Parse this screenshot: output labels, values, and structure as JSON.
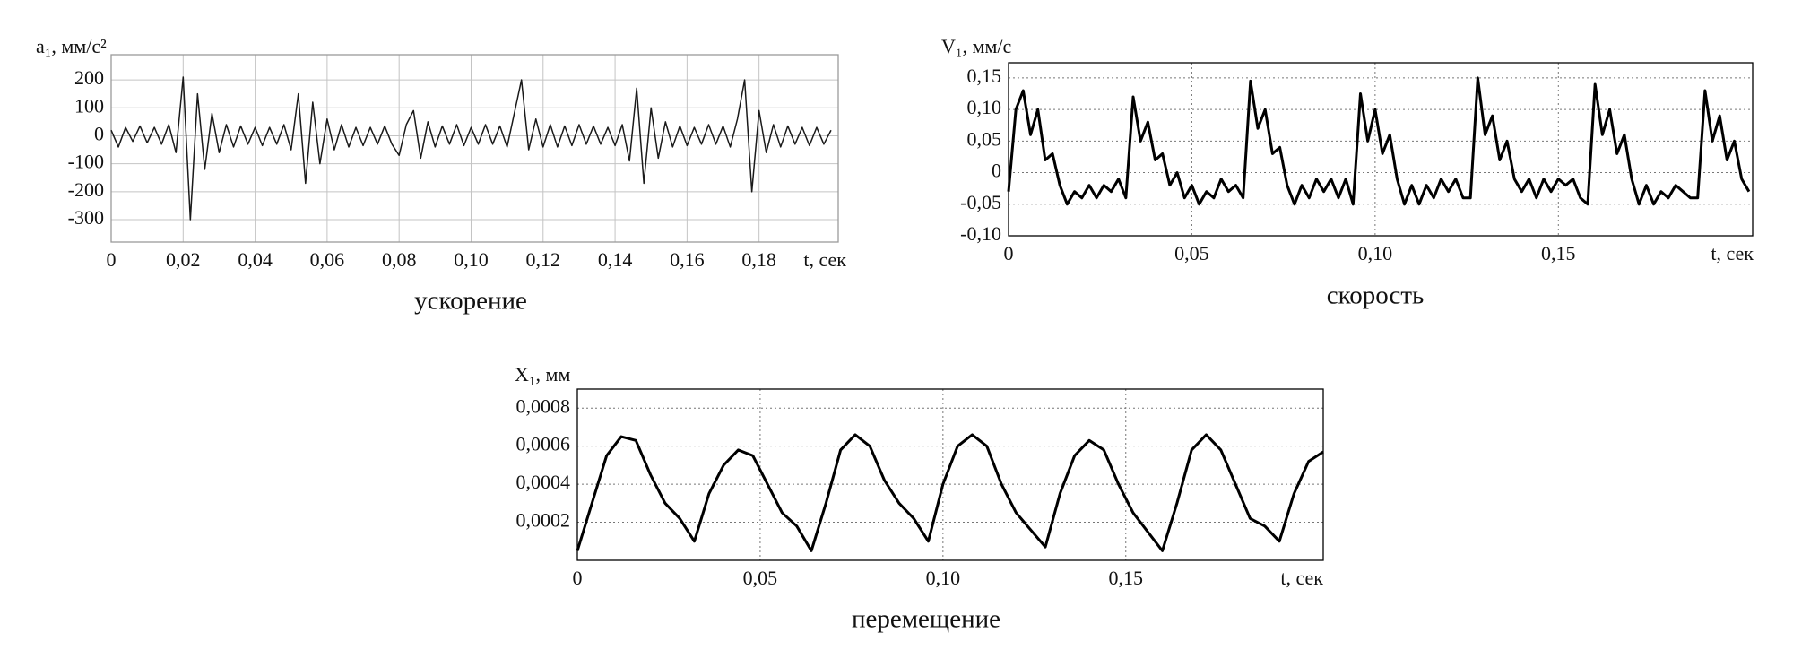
{
  "chart_data": [
    {
      "type": "line",
      "caption": "ускорение",
      "y_label": "a₁, мм/с²",
      "x_label": "t, сек",
      "color": "#1a1a1a",
      "grid": true,
      "xlim": [
        0,
        0.202
      ],
      "ylim": [
        -380,
        290
      ],
      "xticks": [
        0,
        {
          "value": 0.02,
          "label": "0,02"
        },
        {
          "value": 0.04,
          "label": "0,04"
        },
        {
          "value": 0.06,
          "label": "0,06"
        },
        {
          "value": 0.08,
          "label": "0,08"
        },
        {
          "value": 0.1,
          "label": "0,10"
        },
        {
          "value": 0.12,
          "label": "0,12"
        },
        {
          "value": 0.14,
          "label": "0,14"
        },
        {
          "value": 0.16,
          "label": "0,16"
        },
        {
          "value": 0.18,
          "label": "0,18"
        }
      ],
      "yticks": [
        200,
        100,
        0,
        -100,
        -200,
        -300
      ],
      "x": [
        0,
        0.002,
        0.004,
        0.006,
        0.008,
        0.01,
        0.012,
        0.014,
        0.016,
        0.018,
        0.02,
        0.022,
        0.024,
        0.026,
        0.028,
        0.03,
        0.032,
        0.034,
        0.036,
        0.038,
        0.04,
        0.042,
        0.044,
        0.046,
        0.048,
        0.05,
        0.052,
        0.054,
        0.056,
        0.058,
        0.06,
        0.062,
        0.064,
        0.066,
        0.068,
        0.07,
        0.072,
        0.074,
        0.076,
        0.078,
        0.08,
        0.082,
        0.084,
        0.086,
        0.088,
        0.09,
        0.092,
        0.094,
        0.096,
        0.098,
        0.1,
        0.102,
        0.104,
        0.106,
        0.108,
        0.11,
        0.112,
        0.114,
        0.116,
        0.118,
        0.12,
        0.122,
        0.124,
        0.126,
        0.128,
        0.13,
        0.132,
        0.134,
        0.136,
        0.138,
        0.14,
        0.142,
        0.144,
        0.146,
        0.148,
        0.15,
        0.152,
        0.154,
        0.156,
        0.158,
        0.16,
        0.162,
        0.164,
        0.166,
        0.168,
        0.17,
        0.172,
        0.174,
        0.176,
        0.178,
        0.18,
        0.182,
        0.184,
        0.186,
        0.188,
        0.19,
        0.192,
        0.194,
        0.196,
        0.198,
        0.2
      ],
      "values": [
        20,
        -40,
        30,
        -20,
        35,
        -25,
        30,
        -30,
        40,
        -60,
        210,
        -300,
        150,
        -120,
        80,
        -60,
        40,
        -40,
        35,
        -30,
        30,
        -35,
        30,
        -30,
        40,
        -50,
        150,
        -170,
        120,
        -100,
        60,
        -50,
        40,
        -40,
        30,
        -35,
        30,
        -30,
        35,
        -30,
        -70,
        40,
        90,
        -80,
        50,
        -40,
        35,
        -30,
        40,
        -35,
        30,
        -30,
        40,
        -30,
        35,
        -40,
        80,
        200,
        -50,
        60,
        -40,
        40,
        -40,
        35,
        -35,
        40,
        -30,
        35,
        -30,
        30,
        -35,
        40,
        -90,
        170,
        -170,
        100,
        -80,
        50,
        -40,
        35,
        -35,
        30,
        -30,
        40,
        -30,
        35,
        -40,
        60,
        200,
        -200,
        90,
        -60,
        40,
        -40,
        35,
        -30,
        30,
        -35,
        30,
        -30,
        20
      ]
    },
    {
      "type": "line",
      "caption": "скорость",
      "y_label": "V₁, мм/с",
      "x_label": "t, сек",
      "color": "#000000",
      "grid": true,
      "xlim": [
        0,
        0.203
      ],
      "ylim": [
        -0.1,
        0.174
      ],
      "xticks": [
        0,
        {
          "value": 0.05,
          "label": "0,05"
        },
        {
          "value": 0.1,
          "label": "0,10"
        },
        {
          "value": 0.15,
          "label": "0,15"
        }
      ],
      "yticks": [
        {
          "value": 0.15,
          "label": "0,15"
        },
        {
          "value": 0.1,
          "label": "0,10"
        },
        {
          "value": 0.05,
          "label": "0,05"
        },
        0,
        {
          "value": -0.05,
          "label": "-0,05"
        },
        {
          "value": -0.1,
          "label": "-0,10"
        }
      ],
      "x": [
        0,
        0.002,
        0.004,
        0.006,
        0.008,
        0.01,
        0.012,
        0.014,
        0.016,
        0.018,
        0.02,
        0.022,
        0.024,
        0.026,
        0.028,
        0.03,
        0.032,
        0.034,
        0.036,
        0.038,
        0.04,
        0.042,
        0.044,
        0.046,
        0.048,
        0.05,
        0.052,
        0.054,
        0.056,
        0.058,
        0.06,
        0.062,
        0.064,
        0.066,
        0.068,
        0.07,
        0.072,
        0.074,
        0.076,
        0.078,
        0.08,
        0.082,
        0.084,
        0.086,
        0.088,
        0.09,
        0.092,
        0.094,
        0.096,
        0.098,
        0.1,
        0.102,
        0.104,
        0.106,
        0.108,
        0.11,
        0.112,
        0.114,
        0.116,
        0.118,
        0.12,
        0.122,
        0.124,
        0.126,
        0.128,
        0.13,
        0.132,
        0.134,
        0.136,
        0.138,
        0.14,
        0.142,
        0.144,
        0.146,
        0.148,
        0.15,
        0.152,
        0.154,
        0.156,
        0.158,
        0.16,
        0.162,
        0.164,
        0.166,
        0.168,
        0.17,
        0.172,
        0.174,
        0.176,
        0.178,
        0.18,
        0.182,
        0.184,
        0.186,
        0.188,
        0.19,
        0.192,
        0.194,
        0.196,
        0.198,
        0.2,
        0.202
      ],
      "values": [
        -0.03,
        0.1,
        0.13,
        0.06,
        0.1,
        0.02,
        0.03,
        -0.02,
        -0.05,
        -0.03,
        -0.04,
        -0.02,
        -0.04,
        -0.02,
        -0.03,
        -0.01,
        -0.04,
        0.12,
        0.05,
        0.08,
        0.02,
        0.03,
        -0.02,
        0,
        -0.04,
        -0.02,
        -0.05,
        -0.03,
        -0.04,
        -0.01,
        -0.03,
        -0.02,
        -0.04,
        0.145,
        0.07,
        0.1,
        0.03,
        0.04,
        -0.02,
        -0.05,
        -0.02,
        -0.04,
        -0.01,
        -0.03,
        -0.01,
        -0.04,
        -0.01,
        -0.05,
        0.125,
        0.05,
        0.1,
        0.03,
        0.06,
        -0.01,
        -0.05,
        -0.02,
        -0.05,
        -0.02,
        -0.04,
        -0.01,
        -0.03,
        -0.01,
        -0.04,
        -0.04,
        0.15,
        0.06,
        0.09,
        0.02,
        0.05,
        -0.01,
        -0.03,
        -0.01,
        -0.04,
        -0.01,
        -0.03,
        -0.01,
        -0.02,
        -0.01,
        -0.04,
        -0.05,
        0.14,
        0.06,
        0.1,
        0.03,
        0.06,
        -0.01,
        -0.05,
        -0.02,
        -0.05,
        -0.03,
        -0.04,
        -0.02,
        -0.03,
        -0.04,
        -0.04,
        0.13,
        0.05,
        0.09,
        0.02,
        0.05,
        -0.01,
        -0.03
      ]
    },
    {
      "type": "line",
      "caption": "перемещение",
      "y_label": "X₁, мм",
      "x_label": "t, сек",
      "color": "#000000",
      "grid": true,
      "xlim": [
        0,
        0.204
      ],
      "ylim": [
        0,
        0.0009
      ],
      "xticks": [
        0,
        {
          "value": 0.05,
          "label": "0,05"
        },
        {
          "value": 0.1,
          "label": "0,10"
        },
        {
          "value": 0.15,
          "label": "0,15"
        }
      ],
      "yticks": [
        {
          "value": 0.0008,
          "label": "0,0008"
        },
        {
          "value": 0.0006,
          "label": "0,0006"
        },
        {
          "value": 0.0004,
          "label": "0,0004"
        },
        {
          "value": 0.0002,
          "label": "0,0002"
        }
      ],
      "x": [
        0,
        0.004,
        0.008,
        0.012,
        0.016,
        0.02,
        0.024,
        0.028,
        0.032,
        0.036,
        0.04,
        0.044,
        0.048,
        0.052,
        0.056,
        0.06,
        0.064,
        0.068,
        0.072,
        0.076,
        0.08,
        0.084,
        0.088,
        0.092,
        0.096,
        0.1,
        0.104,
        0.108,
        0.112,
        0.116,
        0.12,
        0.124,
        0.128,
        0.132,
        0.136,
        0.14,
        0.144,
        0.148,
        0.152,
        0.156,
        0.16,
        0.164,
        0.168,
        0.172,
        0.176,
        0.18,
        0.184,
        0.188,
        0.192,
        0.196,
        0.2,
        0.204
      ],
      "values": [
        5e-05,
        0.0003,
        0.00055,
        0.00065,
        0.00063,
        0.00045,
        0.0003,
        0.00022,
        0.0001,
        0.00035,
        0.0005,
        0.00058,
        0.00055,
        0.0004,
        0.00025,
        0.00018,
        5e-05,
        0.0003,
        0.00058,
        0.00066,
        0.0006,
        0.00042,
        0.0003,
        0.00022,
        0.0001,
        0.0004,
        0.0006,
        0.00066,
        0.0006,
        0.0004,
        0.00025,
        0.00016,
        7e-05,
        0.00035,
        0.00055,
        0.00063,
        0.00058,
        0.0004,
        0.00025,
        0.00015,
        5e-05,
        0.0003,
        0.00058,
        0.00066,
        0.00058,
        0.0004,
        0.00022,
        0.00018,
        0.0001,
        0.00035,
        0.00052,
        0.00057
      ]
    }
  ]
}
